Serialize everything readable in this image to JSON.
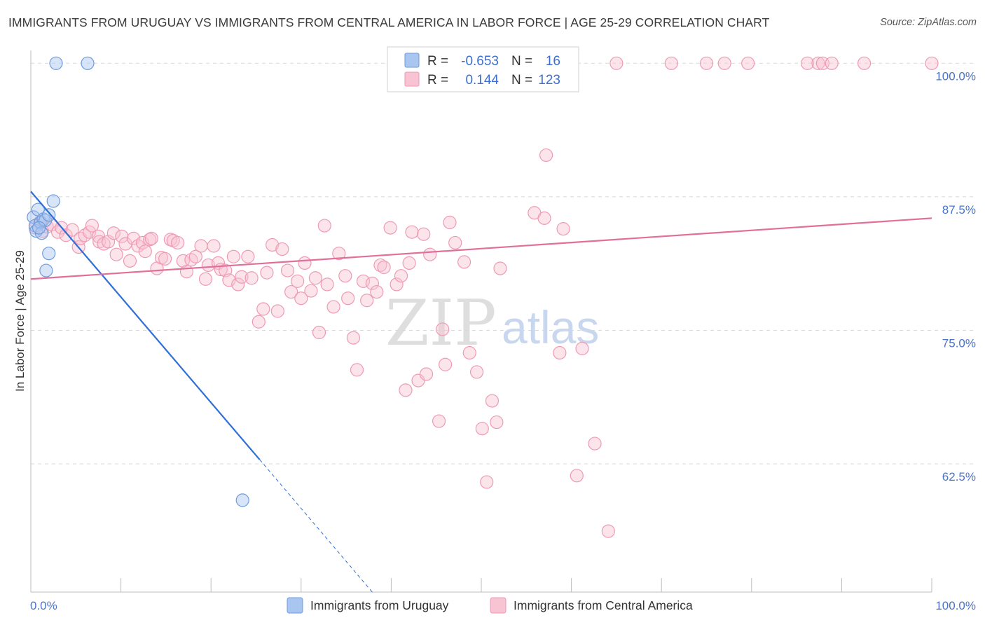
{
  "title": "IMMIGRANTS FROM URUGUAY VS IMMIGRANTS FROM CENTRAL AMERICA IN LABOR FORCE | AGE 25-29 CORRELATION CHART",
  "source": "Source: ZipAtlas.com",
  "watermark": {
    "zip": "ZIP",
    "atlas": "atlas"
  },
  "legend": {
    "uruguay": {
      "r_label": "R =",
      "r_value": "-0.653",
      "n_label": "N =",
      "n_value": "16"
    },
    "central": {
      "r_label": "R =",
      "r_value": "0.144",
      "n_label": "N =",
      "n_value": "123"
    }
  },
  "colors": {
    "uruguay_fill": "#a9c6f0",
    "uruguay_stroke": "#6e9bdc",
    "uruguay_line": "#2f6fd6",
    "central_fill": "#f8c3d3",
    "central_stroke": "#ee9ab5",
    "central_line": "#e0709a",
    "grid": "#d8d8d8",
    "tick_label": "#4b74c9"
  },
  "chart_data": {
    "type": "scatter",
    "title": "IMMIGRANTS FROM URUGUAY VS IMMIGRANTS FROM CENTRAL AMERICA IN LABOR FORCE | AGE 25-29 CORRELATION CHART",
    "xlabel": "",
    "ylabel": "In Labor Force | Age 25-29",
    "xlim": [
      0,
      100
    ],
    "ylim": [
      50.5,
      101.2
    ],
    "x_tick_labels": [
      "0.0%",
      "100.0%"
    ],
    "y_ticks": [
      100.0,
      87.5,
      75.0,
      62.5
    ],
    "y_tick_labels": [
      "100.0%",
      "87.5%",
      "75.0%",
      "62.5%"
    ],
    "grid": true,
    "legend_position": "top-center",
    "series": [
      {
        "name": "Immigrants from Uruguay",
        "color": "#a9c6f0",
        "trend": {
          "x": [
            0,
            25.4
          ],
          "y": [
            88.0,
            62.9
          ],
          "dashed_to": [
            37.9,
            50.5
          ]
        },
        "points": [
          [
            2.8,
            100.0
          ],
          [
            6.3,
            100.0
          ],
          [
            0.3,
            85.6
          ],
          [
            0.5,
            84.8
          ],
          [
            0.6,
            84.3
          ],
          [
            0.8,
            86.3
          ],
          [
            1.1,
            85.1
          ],
          [
            1.2,
            84.1
          ],
          [
            1.4,
            85.4
          ],
          [
            1.6,
            85.3
          ],
          [
            2.0,
            85.8
          ],
          [
            2.5,
            87.1
          ],
          [
            1.7,
            80.6
          ],
          [
            2.0,
            82.2
          ],
          [
            0.9,
            84.6
          ],
          [
            23.5,
            59.1
          ]
        ]
      },
      {
        "name": "Immigrants from Central America",
        "color": "#f8c3d3",
        "trend": {
          "x": [
            0,
            100
          ],
          "y": [
            79.8,
            85.5
          ]
        },
        "points": [
          [
            57.0,
            100.0
          ],
          [
            65.0,
            100.0
          ],
          [
            71.1,
            100.0
          ],
          [
            75.0,
            100.0
          ],
          [
            77.0,
            100.0
          ],
          [
            79.6,
            100.0
          ],
          [
            86.2,
            100.0
          ],
          [
            87.4,
            100.0
          ],
          [
            87.9,
            100.0
          ],
          [
            88.9,
            100.0
          ],
          [
            92.5,
            100.0
          ],
          [
            100.0,
            100.0
          ],
          [
            57.2,
            91.4
          ],
          [
            0.5,
            84.6
          ],
          [
            1.0,
            85.1
          ],
          [
            1.3,
            84.3
          ],
          [
            1.8,
            84.7
          ],
          [
            2.3,
            84.9
          ],
          [
            3.0,
            84.2
          ],
          [
            3.4,
            84.6
          ],
          [
            3.9,
            83.9
          ],
          [
            4.6,
            84.4
          ],
          [
            5.3,
            82.8
          ],
          [
            5.5,
            83.6
          ],
          [
            6.0,
            83.9
          ],
          [
            6.5,
            84.2
          ],
          [
            6.8,
            84.8
          ],
          [
            7.5,
            83.8
          ],
          [
            7.6,
            83.3
          ],
          [
            8.1,
            83.1
          ],
          [
            8.6,
            83.3
          ],
          [
            9.2,
            84.1
          ],
          [
            9.5,
            82.1
          ],
          [
            10.1,
            83.8
          ],
          [
            10.5,
            83.1
          ],
          [
            11.0,
            81.5
          ],
          [
            11.4,
            83.6
          ],
          [
            11.9,
            82.9
          ],
          [
            12.4,
            83.2
          ],
          [
            12.7,
            82.4
          ],
          [
            13.2,
            83.5
          ],
          [
            13.4,
            83.6
          ],
          [
            14.0,
            80.8
          ],
          [
            14.5,
            81.8
          ],
          [
            14.9,
            81.7
          ],
          [
            15.5,
            83.5
          ],
          [
            15.8,
            83.4
          ],
          [
            16.3,
            83.2
          ],
          [
            16.9,
            81.5
          ],
          [
            17.3,
            80.5
          ],
          [
            17.8,
            81.6
          ],
          [
            18.3,
            81.9
          ],
          [
            18.9,
            82.9
          ],
          [
            19.4,
            79.8
          ],
          [
            19.7,
            81.1
          ],
          [
            20.3,
            82.9
          ],
          [
            20.8,
            81.3
          ],
          [
            21.1,
            80.7
          ],
          [
            21.6,
            80.6
          ],
          [
            22.0,
            79.7
          ],
          [
            22.5,
            81.9
          ],
          [
            23.0,
            79.3
          ],
          [
            23.4,
            80.0
          ],
          [
            24.1,
            81.9
          ],
          [
            24.5,
            79.9
          ],
          [
            25.3,
            75.8
          ],
          [
            25.8,
            77.0
          ],
          [
            26.2,
            80.4
          ],
          [
            26.8,
            83.0
          ],
          [
            27.4,
            76.8
          ],
          [
            27.9,
            82.6
          ],
          [
            28.5,
            80.6
          ],
          [
            28.9,
            78.6
          ],
          [
            29.6,
            79.6
          ],
          [
            30.0,
            78.0
          ],
          [
            30.4,
            81.3
          ],
          [
            31.1,
            78.7
          ],
          [
            31.6,
            79.9
          ],
          [
            32.0,
            74.8
          ],
          [
            32.6,
            84.8
          ],
          [
            32.9,
            79.3
          ],
          [
            33.6,
            77.2
          ],
          [
            34.2,
            82.2
          ],
          [
            34.9,
            80.1
          ],
          [
            35.2,
            78.0
          ],
          [
            35.8,
            74.3
          ],
          [
            36.2,
            71.3
          ],
          [
            36.9,
            79.6
          ],
          [
            37.3,
            77.8
          ],
          [
            37.9,
            79.4
          ],
          [
            38.4,
            78.6
          ],
          [
            38.8,
            81.1
          ],
          [
            39.2,
            80.9
          ],
          [
            39.9,
            84.6
          ],
          [
            40.6,
            79.3
          ],
          [
            41.1,
            80.1
          ],
          [
            41.6,
            69.4
          ],
          [
            42.0,
            81.3
          ],
          [
            42.3,
            84.2
          ],
          [
            43.0,
            70.3
          ],
          [
            43.6,
            84.0
          ],
          [
            43.9,
            70.9
          ],
          [
            44.3,
            82.1
          ],
          [
            45.3,
            66.5
          ],
          [
            45.7,
            75.1
          ],
          [
            46.0,
            71.8
          ],
          [
            46.5,
            85.1
          ],
          [
            47.1,
            83.2
          ],
          [
            48.1,
            81.4
          ],
          [
            48.7,
            72.9
          ],
          [
            49.5,
            71.1
          ],
          [
            50.1,
            65.8
          ],
          [
            50.6,
            60.8
          ],
          [
            51.2,
            68.4
          ],
          [
            51.7,
            66.4
          ],
          [
            52.1,
            80.8
          ],
          [
            55.9,
            86.0
          ],
          [
            57.0,
            85.5
          ],
          [
            58.7,
            72.9
          ],
          [
            59.1,
            84.5
          ],
          [
            60.6,
            61.4
          ],
          [
            61.2,
            73.3
          ],
          [
            62.6,
            64.4
          ],
          [
            64.1,
            56.2
          ]
        ]
      }
    ]
  },
  "bottom_legend": {
    "uruguay_label": "Immigrants from Uruguay",
    "central_label": "Immigrants from Central America"
  }
}
